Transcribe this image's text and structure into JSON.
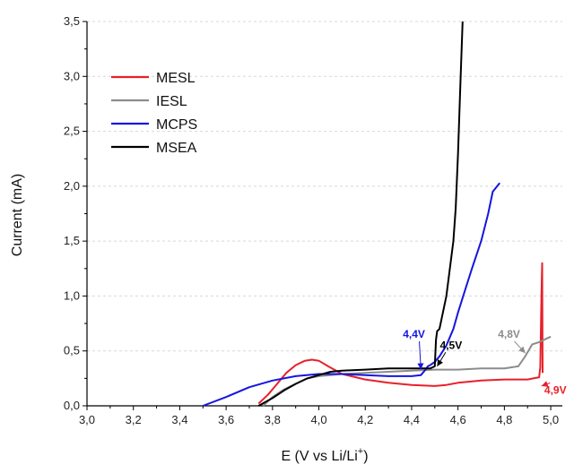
{
  "chart_data": {
    "type": "line",
    "xlabel_main": "E (V vs Li/Li",
    "xlabel_sup": "+",
    "xlabel_end": ")",
    "ylabel": "Current (mA)",
    "xlim": [
      3.0,
      5.05
    ],
    "ylim": [
      0.0,
      3.5
    ],
    "x_ticks": [
      "3,0",
      "3,2",
      "3,4",
      "3,6",
      "3,8",
      "4,0",
      "4,2",
      "4,4",
      "4,6",
      "4,8",
      "5,0"
    ],
    "x_tick_values": [
      3.0,
      3.2,
      3.4,
      3.6,
      3.8,
      4.0,
      4.2,
      4.4,
      4.6,
      4.8,
      5.0
    ],
    "y_ticks": [
      "0,0",
      "0,5",
      "1,0",
      "1,5",
      "2,0",
      "2,5",
      "3,0",
      "3,5"
    ],
    "y_tick_values": [
      0.0,
      0.5,
      1.0,
      1.5,
      2.0,
      2.5,
      3.0,
      3.5
    ],
    "legend_position": "top-left",
    "series": [
      {
        "name": "MESL",
        "color": "#e8202a",
        "x": [
          3.74,
          3.78,
          3.82,
          3.86,
          3.9,
          3.94,
          3.97,
          4.0,
          4.04,
          4.1,
          4.2,
          4.3,
          4.4,
          4.5,
          4.55,
          4.6,
          4.7,
          4.8,
          4.9,
          4.95,
          4.955,
          4.96,
          4.963,
          4.965
        ],
        "y": [
          0.02,
          0.1,
          0.2,
          0.3,
          0.37,
          0.41,
          0.42,
          0.41,
          0.36,
          0.29,
          0.24,
          0.21,
          0.19,
          0.18,
          0.19,
          0.21,
          0.23,
          0.24,
          0.24,
          0.26,
          0.35,
          1.0,
          1.3,
          0.3
        ]
      },
      {
        "name": "IESL",
        "color": "#8c8c8c",
        "x": [
          3.76,
          3.8,
          3.85,
          3.9,
          3.95,
          4.0,
          4.05,
          4.1,
          4.2,
          4.3,
          4.4,
          4.5,
          4.6,
          4.7,
          4.8,
          4.86,
          4.89,
          4.92,
          4.95,
          4.98,
          5.0
        ],
        "y": [
          0.0,
          0.08,
          0.15,
          0.2,
          0.25,
          0.27,
          0.28,
          0.29,
          0.3,
          0.31,
          0.32,
          0.33,
          0.33,
          0.34,
          0.34,
          0.36,
          0.45,
          0.56,
          0.58,
          0.61,
          0.63
        ]
      },
      {
        "name": "MCPS",
        "color": "#1515e0",
        "x": [
          3.5,
          3.6,
          3.7,
          3.8,
          3.9,
          4.0,
          4.1,
          4.2,
          4.3,
          4.4,
          4.44,
          4.46,
          4.47,
          4.48,
          4.5,
          4.52,
          4.55,
          4.58,
          4.6,
          4.63,
          4.66,
          4.7,
          4.73,
          4.75,
          4.78
        ],
        "y": [
          0.0,
          0.08,
          0.17,
          0.23,
          0.27,
          0.29,
          0.29,
          0.28,
          0.27,
          0.27,
          0.28,
          0.33,
          0.36,
          0.37,
          0.4,
          0.45,
          0.55,
          0.7,
          0.85,
          1.05,
          1.25,
          1.5,
          1.75,
          1.95,
          2.03
        ]
      },
      {
        "name": "MSEA",
        "color": "#000000",
        "x": [
          3.74,
          3.8,
          3.85,
          3.9,
          3.95,
          4.0,
          4.05,
          4.1,
          4.2,
          4.3,
          4.4,
          4.48,
          4.5,
          4.505,
          4.51,
          4.52,
          4.55,
          4.58,
          4.59,
          4.6,
          4.61,
          4.62
        ],
        "y": [
          0.0,
          0.07,
          0.14,
          0.2,
          0.25,
          0.28,
          0.31,
          0.32,
          0.33,
          0.34,
          0.34,
          0.34,
          0.36,
          0.6,
          0.68,
          0.7,
          1.0,
          1.5,
          1.8,
          2.3,
          2.9,
          3.5
        ]
      }
    ],
    "annotations": [
      {
        "text": "4,4V",
        "color": "#1515e0",
        "x": 4.41,
        "y": 0.62,
        "arrow_to": [
          4.44,
          0.33
        ]
      },
      {
        "text": "4,5V",
        "color": "#000000",
        "x": 4.57,
        "y": 0.52,
        "arrow_to": [
          4.51,
          0.36
        ]
      },
      {
        "text": "4,8V",
        "color": "#8c8c8c",
        "x": 4.82,
        "y": 0.62,
        "arrow_to": [
          4.89,
          0.48
        ]
      },
      {
        "text": "4,9V",
        "color": "#e8202a",
        "x": 5.02,
        "y": 0.11,
        "arrow_to": [
          4.96,
          0.18
        ]
      }
    ]
  }
}
